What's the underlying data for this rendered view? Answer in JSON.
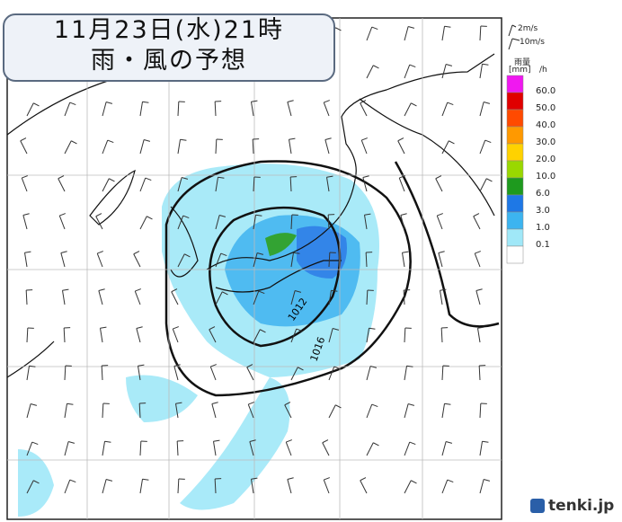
{
  "header": {
    "line1": "11月23日(水)21時",
    "line2": "雨・風の予想"
  },
  "wind_legend": {
    "small": "2m/s",
    "large": "10m/s"
  },
  "rain_legend": {
    "title": "雨量",
    "unit": "[mm]",
    "per": "/h",
    "labels": [
      "60.0",
      "50.0",
      "40.0",
      "30.0",
      "20.0",
      "10.0",
      "6.0",
      "3.0",
      "1.0",
      "0.1"
    ],
    "colors": [
      "#f018f0",
      "#e00000",
      "#ff4a00",
      "#ff9900",
      "#ffd200",
      "#9ad800",
      "#1e9a1e",
      "#1e78e6",
      "#3cb4f0",
      "#a0e8f8",
      "#ffffff"
    ]
  },
  "isobars": [
    "1012",
    "1016"
  ],
  "logo": "tenki.jp"
}
